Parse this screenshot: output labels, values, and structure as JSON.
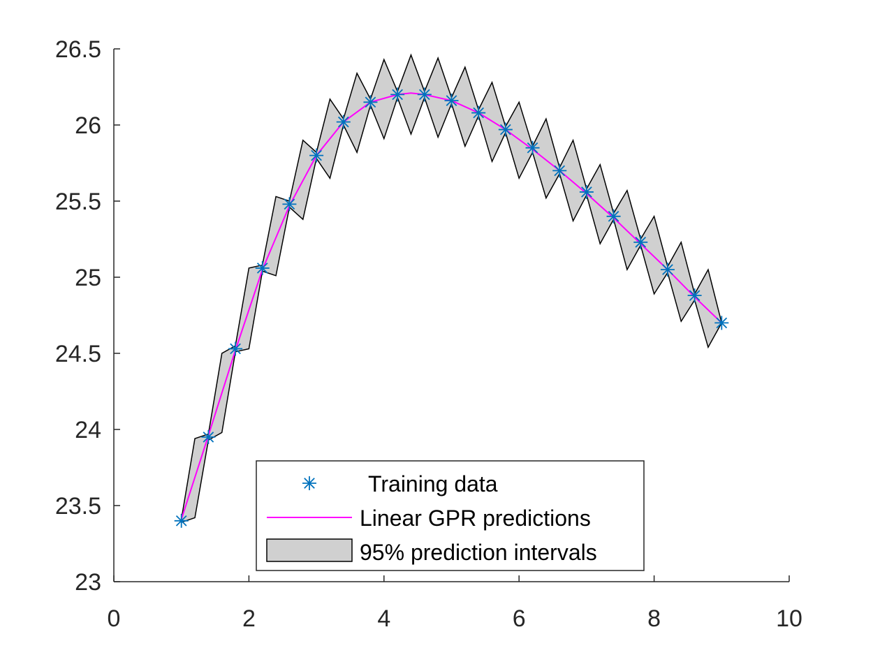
{
  "chart_data": {
    "type": "line",
    "xlim": [
      0,
      10
    ],
    "ylim": [
      23,
      26.5
    ],
    "xticks": [
      "0",
      "2",
      "4",
      "6",
      "8",
      "10"
    ],
    "yticks": [
      "23",
      "23.5",
      "24",
      "24.5",
      "25",
      "25.5",
      "26",
      "26.5"
    ],
    "grid": false,
    "legend_position": "bottom-center",
    "colors": {
      "training": "#0072BD",
      "prediction": "#FF00FF",
      "interval_fill": "#d0d0d0",
      "interval_edge": "#000000",
      "axis": "#262626"
    },
    "series": [
      {
        "name": "Training data",
        "type": "scatter",
        "marker": "asterisk",
        "x": [
          1.0,
          1.4,
          1.8,
          2.2,
          2.6,
          3.0,
          3.4,
          3.8,
          4.2,
          4.6,
          5.0,
          5.4,
          5.8,
          6.2,
          6.6,
          7.0,
          7.4,
          7.8,
          8.2,
          8.6,
          9.0
        ],
        "y": [
          23.4,
          23.95,
          24.53,
          25.06,
          25.48,
          25.8,
          26.02,
          26.15,
          26.2,
          26.2,
          26.16,
          26.08,
          25.97,
          25.85,
          25.7,
          25.56,
          25.4,
          25.23,
          25.05,
          24.88,
          24.7
        ]
      },
      {
        "name": "Linear GPR predictions",
        "type": "line",
        "x": [
          1.0,
          1.4,
          1.8,
          2.2,
          2.6,
          3.0,
          3.4,
          3.8,
          4.2,
          4.4,
          4.6,
          5.0,
          5.4,
          5.8,
          6.2,
          6.6,
          7.0,
          7.4,
          7.8,
          8.2,
          8.6,
          9.0
        ],
        "y": [
          23.41,
          23.96,
          24.52,
          25.05,
          25.47,
          25.8,
          26.02,
          26.15,
          26.2,
          26.21,
          26.2,
          26.16,
          26.08,
          25.97,
          25.84,
          25.7,
          25.55,
          25.39,
          25.22,
          25.05,
          24.87,
          24.7
        ]
      },
      {
        "name": "95% prediction intervals",
        "type": "area",
        "x": [
          1.0,
          1.2,
          1.4,
          1.6,
          1.8,
          2.0,
          2.2,
          2.4,
          2.6,
          2.8,
          3.0,
          3.2,
          3.4,
          3.6,
          3.8,
          4.0,
          4.2,
          4.4,
          4.6,
          4.8,
          5.0,
          5.2,
          5.4,
          5.6,
          5.8,
          6.0,
          6.2,
          6.4,
          6.6,
          6.8,
          7.0,
          7.2,
          7.4,
          7.6,
          7.8,
          8.0,
          8.2,
          8.4,
          8.6,
          8.8,
          9.0
        ],
        "upper": [
          23.41,
          23.94,
          23.97,
          24.5,
          24.55,
          25.06,
          25.08,
          25.53,
          25.5,
          25.9,
          25.82,
          26.17,
          26.04,
          26.34,
          26.17,
          26.43,
          26.22,
          26.46,
          26.22,
          26.44,
          26.18,
          26.38,
          26.1,
          26.28,
          25.99,
          26.15,
          25.86,
          26.04,
          25.72,
          25.9,
          25.58,
          25.74,
          25.42,
          25.57,
          25.25,
          25.4,
          25.07,
          25.23,
          24.89,
          25.05,
          24.7
        ],
        "lower": [
          23.39,
          23.42,
          23.93,
          23.98,
          24.51,
          24.53,
          25.04,
          25.01,
          25.46,
          25.38,
          25.78,
          25.65,
          26.0,
          25.82,
          26.13,
          25.91,
          26.18,
          25.94,
          26.18,
          25.92,
          26.14,
          25.86,
          26.06,
          25.76,
          25.95,
          25.65,
          25.82,
          25.52,
          25.68,
          25.37,
          25.54,
          25.22,
          25.38,
          25.05,
          25.21,
          24.89,
          25.03,
          24.71,
          24.85,
          24.54,
          24.7
        ]
      }
    ]
  }
}
